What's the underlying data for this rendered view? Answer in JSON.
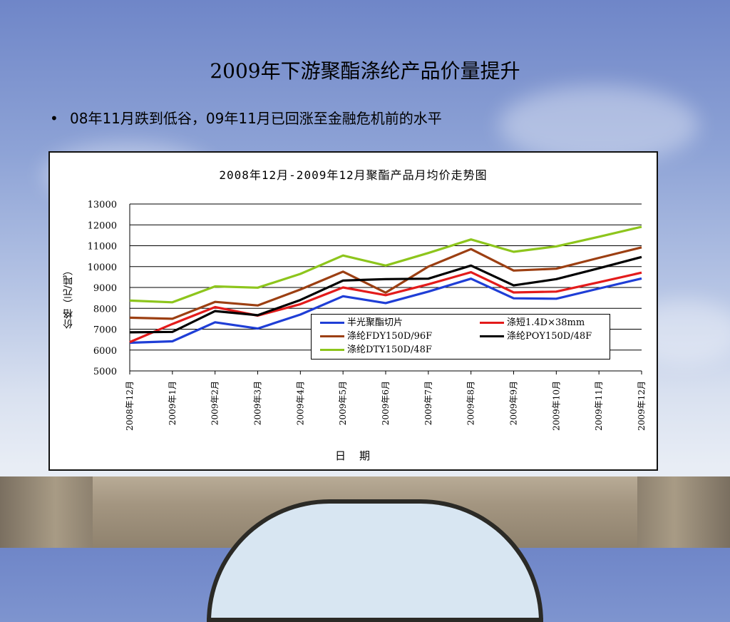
{
  "slide": {
    "title": "2009年下游聚酯涤纶产品价量提升",
    "bullet_marker": "•",
    "bullet_text": "08年11月跌到低谷，09年11月已回涨至金融危机前的水平"
  },
  "chart_data": {
    "type": "line",
    "title": "2008年12月-2009年12月聚酯产品月均价走势图",
    "xlabel": "日　期",
    "ylabel": "价格（元/吨）",
    "ylim": [
      5000,
      13000
    ],
    "yticks": [
      "13000",
      "12000",
      "11000",
      "10000",
      "9000",
      "8000",
      "7000",
      "6000",
      "5000"
    ],
    "grid": true,
    "legend_position": "lower-right",
    "categories": [
      "2008年12月",
      "2009年1月",
      "2009年2月",
      "2009年3月",
      "2009年4月",
      "2009年5月",
      "2009年6月",
      "2009年7月",
      "2009年8月",
      "2009年9月",
      "2009年10月",
      "2009年11月",
      "2009年12月"
    ],
    "series": [
      {
        "name": "半光聚酯切片",
        "color": "#1f3ed6",
        "values": [
          6350,
          6420,
          7330,
          7030,
          7700,
          8580,
          8250,
          8800,
          9420,
          8480,
          8460,
          8950,
          9430
        ],
        "legend_slot": 0
      },
      {
        "name": "涤短1.4D×38mm",
        "color": "#e31b1b",
        "values": [
          6380,
          7250,
          8060,
          7650,
          8200,
          9000,
          8630,
          9150,
          9730,
          8760,
          8800,
          9250,
          9710
        ],
        "legend_slot": 1
      },
      {
        "name": "涤纶FDY150D/96F",
        "color": "#9c3f12",
        "values": [
          7550,
          7500,
          8310,
          8140,
          8900,
          9760,
          8750,
          10000,
          10840,
          9810,
          9900,
          10420,
          10920
        ],
        "legend_slot": 2
      },
      {
        "name": "涤纶POY150D/48F",
        "color": "#000000",
        "values": [
          6850,
          6870,
          7870,
          7670,
          8400,
          9330,
          9400,
          9420,
          10050,
          9100,
          9400,
          9920,
          10460
        ],
        "legend_slot": 3
      },
      {
        "name": "涤纶DTY150D/48F",
        "color": "#8dc51c",
        "values": [
          8370,
          8290,
          9050,
          8990,
          9650,
          10530,
          10050,
          10650,
          11300,
          10710,
          10970,
          11430,
          11910
        ],
        "legend_slot": 4
      }
    ]
  }
}
